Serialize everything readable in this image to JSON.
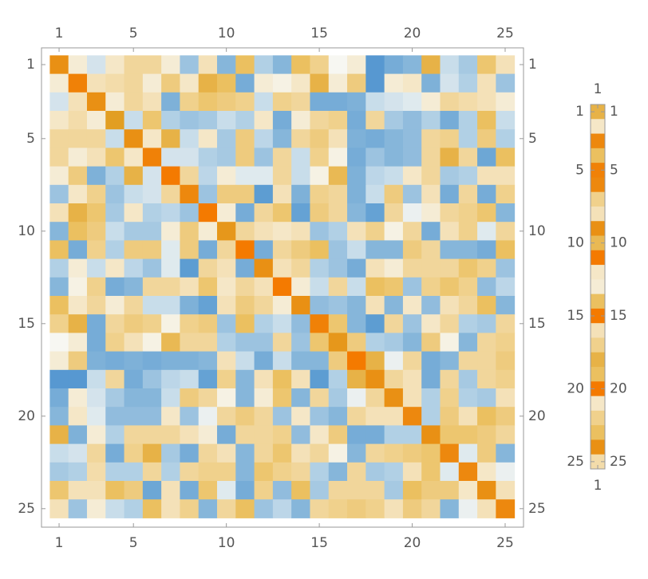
{
  "chart_data": [
    {
      "type": "matrix",
      "xticks": [
        1,
        5,
        10,
        15,
        20,
        25
      ],
      "yticks": [
        1,
        5,
        10,
        15,
        20,
        25
      ],
      "zlim": [
        -1,
        1
      ],
      "color_stops": [
        "#3f86cc",
        "#5d9dd2",
        "#86b6da",
        "#bcd6e8",
        "#f7f7f2",
        "#f3dcaa",
        "#ebc060",
        "#e29e22",
        "#f47a00"
      ],
      "values": [
        [
          0.85,
          0.1,
          -0.15,
          0.15,
          0.3,
          0.3,
          0.1,
          -0.4,
          0.2,
          -0.5,
          0.5,
          -0.3,
          -0.5,
          0.5,
          0.35,
          0,
          0.1,
          -0.8,
          -0.6,
          -0.5,
          0.6,
          -0.2,
          -0.35,
          0.45,
          0.2
        ],
        [
          0.1,
          0.95,
          0.2,
          0.25,
          0.3,
          0.1,
          0.4,
          0.15,
          0.6,
          0.5,
          -0.6,
          0.1,
          0.05,
          0.15,
          0.6,
          0.1,
          0.4,
          -0.8,
          0.1,
          0.15,
          -0.55,
          -0.15,
          -0.3,
          0.2,
          -0.4
        ],
        [
          -0.15,
          0.2,
          0.85,
          0.1,
          0.3,
          0.2,
          -0.55,
          0.35,
          0.45,
          0.4,
          0.35,
          -0.2,
          0.35,
          0.3,
          -0.6,
          -0.6,
          -0.55,
          -0.2,
          -0.15,
          -0.1,
          0.1,
          0.3,
          0.25,
          0.2,
          0.1
        ],
        [
          0.15,
          0.25,
          0.1,
          0.75,
          -0.2,
          0.45,
          -0.3,
          -0.4,
          -0.35,
          -0.2,
          -0.3,
          0.15,
          -0.6,
          0.1,
          0.3,
          0.35,
          -0.6,
          0.3,
          -0.35,
          -0.45,
          -0.3,
          -0.6,
          -0.3,
          0.5,
          -0.2
        ],
        [
          0.3,
          0.3,
          0.3,
          -0.2,
          0.85,
          0.15,
          0.6,
          -0.2,
          0.15,
          -0.35,
          0.4,
          -0.25,
          -0.5,
          0.3,
          0.4,
          0.2,
          -0.55,
          -0.6,
          -0.5,
          -0.45,
          0.3,
          0.35,
          -0.3,
          0.4,
          -0.3
        ],
        [
          0.3,
          0.1,
          0.2,
          0.45,
          0.15,
          0.95,
          -0.15,
          -0.15,
          -0.3,
          -0.35,
          0.4,
          -0.4,
          0.3,
          -0.2,
          0.35,
          0.05,
          -0.6,
          -0.4,
          -0.5,
          -0.45,
          0.3,
          0.6,
          0.3,
          -0.65,
          0.5
        ],
        [
          0.1,
          0.4,
          -0.55,
          -0.3,
          0.6,
          -0.15,
          1,
          0.3,
          -0.25,
          0.1,
          -0.1,
          -0.1,
          0.3,
          -0.2,
          0.05,
          0.55,
          -0.55,
          -0.25,
          -0.2,
          0.15,
          0.3,
          -0.35,
          -0.3,
          0.2,
          0.2
        ],
        [
          -0.4,
          0.15,
          0.35,
          -0.4,
          -0.2,
          -0.15,
          0.3,
          0.9,
          -0.4,
          0.4,
          0.4,
          -0.75,
          0.2,
          -0.55,
          0.35,
          0.3,
          -0.55,
          -0.2,
          0.4,
          -0.4,
          0.2,
          -0.6,
          0.3,
          -0.6,
          0.35
        ],
        [
          0.2,
          0.6,
          0.45,
          -0.35,
          0.15,
          -0.3,
          -0.25,
          -0.4,
          1,
          0.1,
          -0.6,
          0.3,
          0.45,
          -0.7,
          0.4,
          0.3,
          -0.5,
          -0.7,
          0.3,
          -0.05,
          0.1,
          0.3,
          0.35,
          0.45,
          -0.5
        ],
        [
          -0.5,
          0.5,
          0.4,
          -0.2,
          -0.35,
          -0.35,
          0.1,
          0.4,
          0.1,
          0.8,
          0.3,
          0.2,
          0.15,
          0.2,
          -0.4,
          -0.3,
          0.2,
          0.35,
          0.05,
          0.3,
          -0.6,
          0.2,
          0.35,
          -0.1,
          0.3
        ],
        [
          0.5,
          -0.6,
          0.35,
          -0.3,
          0.4,
          0.4,
          -0.1,
          0.4,
          -0.6,
          0.3,
          1,
          -0.6,
          0.3,
          0.4,
          0.5,
          -0.4,
          -0.2,
          -0.5,
          -0.5,
          0.4,
          0.3,
          -0.5,
          -0.5,
          -0.6,
          0.5
        ],
        [
          -0.3,
          0.1,
          -0.2,
          0.15,
          -0.25,
          -0.4,
          -0.1,
          -0.75,
          0.3,
          0.2,
          -0.6,
          0.85,
          0.2,
          0.3,
          -0.3,
          -0.4,
          -0.6,
          0.2,
          0.1,
          0.3,
          0.3,
          0.3,
          0.45,
          0.35,
          -0.4
        ],
        [
          -0.5,
          0.05,
          0.35,
          -0.6,
          -0.5,
          0.3,
          0.3,
          0.2,
          0.45,
          0.15,
          0.3,
          0.2,
          1,
          0.1,
          -0.2,
          0.3,
          -0.2,
          0.5,
          0.45,
          -0.4,
          0.35,
          0.45,
          0.35,
          -0.45,
          -0.25
        ],
        [
          0.5,
          0.15,
          0.3,
          0.1,
          0.3,
          -0.2,
          -0.2,
          -0.55,
          -0.7,
          0.2,
          0.4,
          0.3,
          0.1,
          0.85,
          -0.45,
          -0.4,
          -0.5,
          0.2,
          -0.5,
          0.15,
          -0.45,
          0.2,
          0.3,
          0.5,
          -0.5
        ],
        [
          0.35,
          0.6,
          -0.6,
          0.3,
          0.4,
          0.35,
          0.05,
          0.35,
          0.4,
          -0.4,
          0.5,
          -0.3,
          -0.2,
          -0.45,
          0.95,
          0.45,
          -0.5,
          -0.75,
          0.3,
          -0.4,
          0.15,
          0.3,
          -0.3,
          -0.35,
          0.3
        ],
        [
          0,
          0.1,
          -0.6,
          0.35,
          0.2,
          0.05,
          0.55,
          0.3,
          0.3,
          -0.3,
          -0.4,
          -0.4,
          0.3,
          -0.4,
          0.45,
          0.8,
          0.4,
          -0.3,
          -0.35,
          -0.5,
          0.4,
          0.05,
          -0.5,
          0.3,
          0.35
        ],
        [
          0.1,
          0.4,
          -0.55,
          -0.6,
          -0.55,
          -0.6,
          -0.55,
          -0.55,
          -0.5,
          0.2,
          -0.2,
          -0.6,
          -0.2,
          -0.5,
          -0.5,
          0.4,
          1,
          0.6,
          -0.05,
          0.3,
          -0.6,
          -0.5,
          0.3,
          0.3,
          0.4
        ],
        [
          -0.8,
          -0.8,
          -0.2,
          0.3,
          -0.6,
          -0.4,
          -0.25,
          -0.2,
          -0.7,
          0.35,
          -0.5,
          0.2,
          0.5,
          0.2,
          -0.75,
          -0.3,
          0.6,
          0.85,
          0.3,
          0.2,
          -0.6,
          0.3,
          -0.35,
          0.3,
          0.35
        ],
        [
          -0.6,
          0.1,
          -0.15,
          -0.35,
          -0.5,
          -0.5,
          -0.2,
          0.4,
          0.3,
          0.05,
          -0.5,
          0.1,
          0.45,
          -0.5,
          0.3,
          -0.35,
          -0.05,
          0.3,
          0.85,
          0.2,
          -0.3,
          0.35,
          -0.3,
          -0.35,
          0.2
        ],
        [
          -0.5,
          0.15,
          -0.1,
          -0.45,
          -0.45,
          -0.45,
          0.15,
          -0.4,
          -0.05,
          0.3,
          0.4,
          0.3,
          -0.4,
          0.15,
          -0.4,
          -0.5,
          0.3,
          0.2,
          0.2,
          0.9,
          -0.3,
          0.4,
          0.2,
          0.5,
          0.4
        ],
        [
          0.6,
          -0.55,
          0.1,
          -0.3,
          0.3,
          0.3,
          0.3,
          0.2,
          0.1,
          -0.6,
          0.3,
          0.3,
          0.35,
          -0.45,
          0.15,
          0.4,
          -0.6,
          -0.6,
          -0.3,
          -0.3,
          0.85,
          0.45,
          0.45,
          0.4,
          0.3
        ],
        [
          -0.2,
          -0.15,
          0.3,
          -0.6,
          0.35,
          0.6,
          -0.35,
          -0.6,
          0.3,
          0.2,
          -0.5,
          0.3,
          0.45,
          0.2,
          0.3,
          0.05,
          -0.5,
          0.3,
          0.35,
          0.4,
          0.45,
          0.9,
          -0.1,
          0.4,
          -0.5
        ],
        [
          -0.35,
          -0.3,
          0.25,
          -0.3,
          -0.3,
          0.3,
          -0.3,
          0.3,
          0.35,
          0.35,
          -0.5,
          0.45,
          0.35,
          0.3,
          -0.3,
          -0.5,
          0.3,
          -0.35,
          -0.3,
          0.2,
          0.45,
          -0.1,
          0.9,
          0.15,
          -0.05
        ],
        [
          0.45,
          0.2,
          0.2,
          0.5,
          0.4,
          -0.65,
          0.2,
          -0.6,
          0.45,
          -0.1,
          -0.6,
          0.35,
          -0.45,
          0.5,
          -0.35,
          0.3,
          0.3,
          0.3,
          -0.35,
          0.5,
          0.4,
          0.4,
          0.15,
          0.85,
          0.2
        ],
        [
          0.2,
          -0.4,
          0.1,
          -0.2,
          -0.3,
          0.5,
          0.2,
          0.35,
          -0.5,
          0.3,
          0.5,
          -0.4,
          -0.25,
          -0.5,
          0.3,
          0.35,
          0.4,
          0.35,
          0.2,
          0.4,
          0.3,
          -0.5,
          -0.05,
          0.2,
          0.9
        ]
      ]
    },
    {
      "type": "matrix",
      "xticks": [
        1
      ],
      "yticks": [
        1,
        5,
        10,
        15,
        20,
        25
      ],
      "zlim": [
        -1,
        1
      ],
      "color_stops": [
        "#3f86cc",
        "#5d9dd2",
        "#86b6da",
        "#bcd6e8",
        "#f7f7f2",
        "#f3dcaa",
        "#ebc060",
        "#e29e22",
        "#f47a00"
      ],
      "values": [
        [
          0.6
        ],
        [
          0.15
        ],
        [
          0.9
        ],
        [
          0.5
        ],
        [
          0.95
        ],
        [
          0.9
        ],
        [
          0.35
        ],
        [
          0.2
        ],
        [
          0.85
        ],
        [
          0.55
        ],
        [
          1
        ],
        [
          0.15
        ],
        [
          0.1
        ],
        [
          0.5
        ],
        [
          1
        ],
        [
          0.2
        ],
        [
          0.35
        ],
        [
          0.6
        ],
        [
          0.5
        ],
        [
          1
        ],
        [
          0.15
        ],
        [
          0.35
        ],
        [
          0.5
        ],
        [
          0.85
        ],
        [
          0.25
        ]
      ]
    }
  ]
}
